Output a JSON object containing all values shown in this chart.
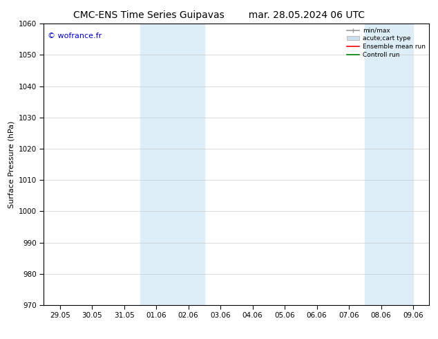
{
  "title_left": "CMC-ENS Time Series Guipavas",
  "title_right": "mar. 28.05.2024 06 UTC",
  "ylabel": "Surface Pressure (hPa)",
  "ylim": [
    970,
    1060
  ],
  "yticks": [
    970,
    980,
    990,
    1000,
    1010,
    1020,
    1030,
    1040,
    1050,
    1060
  ],
  "xtick_labels": [
    "29.05",
    "30.05",
    "31.05",
    "01.06",
    "02.06",
    "03.06",
    "04.06",
    "05.06",
    "06.06",
    "07.06",
    "08.06",
    "09.06"
  ],
  "xtick_positions": [
    0,
    1,
    2,
    3,
    4,
    5,
    6,
    7,
    8,
    9,
    10,
    11
  ],
  "xlim": [
    -0.5,
    11.5
  ],
  "shaded_regions": [
    {
      "xmin": 3.0,
      "xmax": 5.0,
      "color": "#ddeef8"
    },
    {
      "xmin": 10.0,
      "xmax": 11.5,
      "color": "#ddeef8"
    }
  ],
  "watermark_text": "© wofrance.fr",
  "watermark_color": "#0000cc",
  "legend_items": [
    {
      "label": "min/max",
      "color": "#999999"
    },
    {
      "label": "acute;cart type",
      "color": "#ccddee"
    },
    {
      "label": "Ensemble mean run",
      "color": "red"
    },
    {
      "label": "Controll run",
      "color": "green"
    }
  ],
  "bg_color": "white",
  "grid_color": "#cccccc",
  "title_fontsize": 10,
  "label_fontsize": 8,
  "tick_fontsize": 7.5,
  "watermark_fontsize": 8
}
